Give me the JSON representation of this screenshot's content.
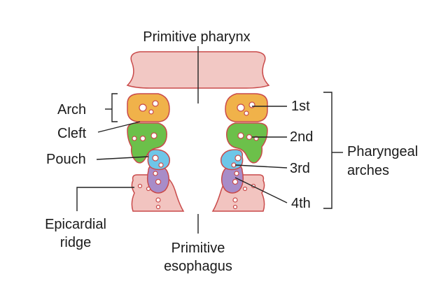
{
  "labels": {
    "primitive_pharynx": "Primitive pharynx",
    "arch": "Arch",
    "cleft": "Cleft",
    "pouch": "Pouch",
    "epicardial_line1": "Epicardial",
    "epicardial_line2": "ridge",
    "esophagus_line1": "Primitive",
    "esophagus_line2": "esophagus",
    "first": "1st",
    "second": "2nd",
    "third": "3rd",
    "fourth": "4th",
    "pharyngeal_line1": "Pharyngeal",
    "pharyngeal_line2": "arches"
  },
  "colors": {
    "arch1": "#f0b24a",
    "arch2": "#6cc04a",
    "arch3": "#6ec6e8",
    "arch4": "#a88cc8",
    "epicardial": "#f2c4c0",
    "pharynx": "#f2c8c4",
    "outline": "#c94a4a",
    "leader": "#222222"
  }
}
